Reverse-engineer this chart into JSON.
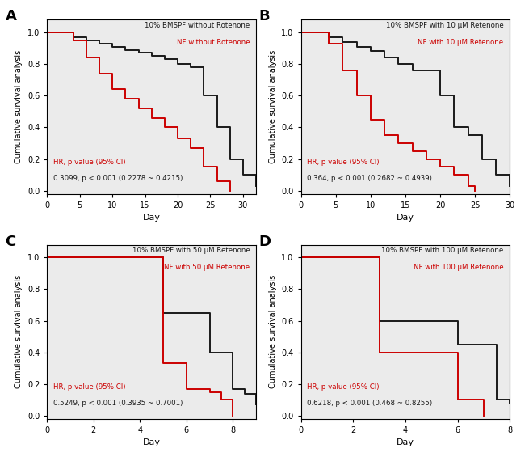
{
  "panels": [
    {
      "label": "A",
      "title_black": "10% BMSPF without Rotenone",
      "title_red": "NF without Rotenone",
      "hr_text": "HR, p value (95% CI)",
      "hr_value": "0.3099, p < 0.001 (0.2278 ~ 0.4215)",
      "xlim": [
        0,
        32
      ],
      "xticks": [
        0,
        5,
        10,
        15,
        20,
        25,
        30
      ],
      "black_x": [
        0,
        3,
        4,
        6,
        8,
        10,
        12,
        14,
        16,
        18,
        20,
        22,
        24,
        26,
        28,
        30,
        32
      ],
      "black_y": [
        1.0,
        1.0,
        0.97,
        0.95,
        0.93,
        0.91,
        0.89,
        0.87,
        0.85,
        0.83,
        0.8,
        0.78,
        0.6,
        0.4,
        0.2,
        0.1,
        0.03
      ],
      "red_x": [
        0,
        3,
        4,
        6,
        8,
        10,
        12,
        14,
        16,
        18,
        20,
        22,
        24,
        26,
        28
      ],
      "red_y": [
        1.0,
        1.0,
        0.95,
        0.84,
        0.74,
        0.64,
        0.58,
        0.52,
        0.46,
        0.4,
        0.33,
        0.27,
        0.15,
        0.06,
        0.0
      ]
    },
    {
      "label": "B",
      "title_black": "10% BMSPF with 10 μM Retenone",
      "title_red": "NF with 10 μM Retenone",
      "hr_text": "HR, p value (95% CI)",
      "hr_value": "0.364, p < 0.001 (0.2682 ~ 0.4939)",
      "xlim": [
        0,
        30
      ],
      "xticks": [
        0,
        5,
        10,
        15,
        20,
        25,
        30
      ],
      "black_x": [
        0,
        3,
        4,
        6,
        8,
        10,
        12,
        14,
        16,
        20,
        22,
        24,
        26,
        28,
        30
      ],
      "black_y": [
        1.0,
        1.0,
        0.97,
        0.94,
        0.91,
        0.88,
        0.84,
        0.8,
        0.76,
        0.6,
        0.4,
        0.35,
        0.2,
        0.1,
        0.03
      ],
      "red_x": [
        0,
        3,
        4,
        6,
        8,
        10,
        12,
        14,
        16,
        18,
        20,
        22,
        24,
        25
      ],
      "red_y": [
        1.0,
        1.0,
        0.93,
        0.76,
        0.6,
        0.45,
        0.35,
        0.3,
        0.25,
        0.2,
        0.15,
        0.1,
        0.03,
        0.0
      ]
    },
    {
      "label": "C",
      "title_black": "10% BMSPF with 50 μM Retenone",
      "title_red": "NF with 50 μM Retenone",
      "hr_text": "HR, p value (95% CI)",
      "hr_value": "0.5249, p < 0.001 (0.3935 ~ 0.7001)",
      "xlim": [
        0,
        9
      ],
      "xticks": [
        0,
        2,
        4,
        6,
        8
      ],
      "black_x": [
        0,
        3,
        5,
        6,
        7,
        8,
        8.5,
        9.0
      ],
      "black_y": [
        1.0,
        1.0,
        0.65,
        0.65,
        0.4,
        0.17,
        0.14,
        0.07
      ],
      "red_x": [
        0,
        3,
        5,
        6,
        7,
        7.5,
        8.0
      ],
      "red_y": [
        1.0,
        1.0,
        0.33,
        0.17,
        0.15,
        0.1,
        0.0
      ]
    },
    {
      "label": "D",
      "title_black": "10% BMSPF with 100 μM Retenone",
      "title_red": "NF with 100 μM Retenone",
      "hr_text": "HR, p value (95% CI)",
      "hr_value": "0.6218, p < 0.001 (0.468 ~ 0.8255)",
      "xlim": [
        0,
        8
      ],
      "xticks": [
        0,
        2,
        4,
        6,
        8
      ],
      "black_x": [
        0,
        2,
        3,
        5,
        6,
        7,
        7.5,
        8.0
      ],
      "black_y": [
        1.0,
        1.0,
        0.6,
        0.6,
        0.45,
        0.45,
        0.1,
        0.08
      ],
      "red_x": [
        0,
        2,
        3,
        5,
        6,
        7.0
      ],
      "red_y": [
        1.0,
        1.0,
        0.4,
        0.4,
        0.1,
        0.0
      ]
    }
  ],
  "ylabel": "Cumulative survival analysis",
  "xlabel": "Day",
  "bg_color": "#ebebeb",
  "black_color": "#1a1a1a",
  "red_color": "#cc0000",
  "linewidth": 1.4
}
